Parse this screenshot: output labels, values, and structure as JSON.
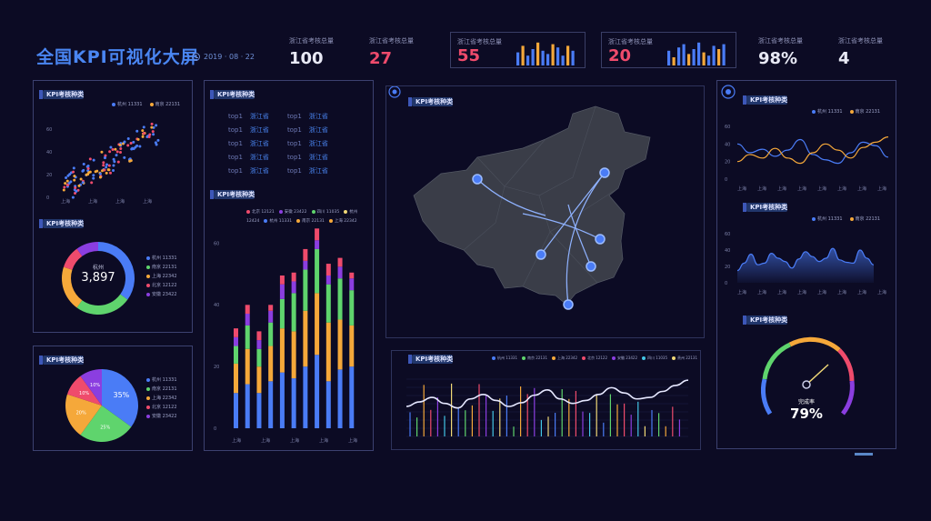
{
  "header": {
    "title": "全国KPI可视化大屏",
    "date": "2019 · 08 · 22"
  },
  "kpis": [
    {
      "label": "浙江省考核总量",
      "value": "100",
      "color": "#e8e9f5"
    },
    {
      "label": "浙江省考核总量",
      "value": "27",
      "color": "#ef4b6c"
    },
    {
      "label": "浙江省考核总量",
      "value": "55",
      "color": "#ef4b6c"
    },
    {
      "label": "浙江省考核总量",
      "value": "20",
      "color": "#ef4b6c"
    },
    {
      "label": "浙江省考核总量",
      "value": "98%",
      "color": "#e8e9f5"
    },
    {
      "label": "浙江省考核总量",
      "value": "4",
      "color": "#e8e9f5"
    }
  ],
  "panel_title": "KPI考核种类",
  "colors": {
    "blue": "#4a7cf6",
    "orange": "#f5a83a",
    "green": "#5fd46d",
    "red": "#ef4b6c",
    "purple": "#8b3ee0",
    "yellow": "#f0d877",
    "cyan": "#43c6e6"
  },
  "rank_list": {
    "rows": [
      {
        "a": "top1",
        "b": "浙江省",
        "c": "top1",
        "d": "浙江省"
      },
      {
        "a": "top1",
        "b": "浙江省",
        "c": "top1",
        "d": "浙江省"
      },
      {
        "a": "top1",
        "b": "浙江省",
        "c": "top1",
        "d": "浙江省"
      },
      {
        "a": "top1",
        "b": "浙江省",
        "c": "top1",
        "d": "浙江省"
      },
      {
        "a": "top1",
        "b": "浙江省",
        "c": "top1",
        "d": "浙江省"
      }
    ]
  },
  "gauge": {
    "label": "完成率",
    "value": "79%"
  },
  "chart_data": [
    {
      "id": "scatter",
      "type": "scatter",
      "legend": [
        "杭州 11331",
        "南京 22131"
      ],
      "xlabels": [
        "上海",
        "上海",
        "上海",
        "上海"
      ],
      "yticks": [
        "60",
        "40",
        "20",
        "0"
      ],
      "ylim": [
        0,
        70
      ]
    },
    {
      "id": "donut",
      "type": "pie",
      "center_label": "杭州",
      "center_value": "3,897",
      "legend": [
        "杭州 11331",
        "南京 22131",
        "上海 22342",
        "北京 12122",
        "安徽 23422"
      ],
      "values": [
        35,
        25,
        20,
        10,
        10
      ]
    },
    {
      "id": "pie",
      "type": "pie",
      "legend": [
        "杭州 11331",
        "南京 22131",
        "上海 22342",
        "北京 12122",
        "安徽 23422"
      ],
      "values": [
        35,
        25,
        20,
        10,
        10
      ],
      "labels": [
        "35%",
        "25%",
        "20%",
        "10%",
        "10%"
      ]
    },
    {
      "id": "stacked",
      "type": "bar",
      "legend": [
        "北京 12121",
        "安徽 23422",
        "四川 11035",
        "杭州 12424",
        "杭州 11331",
        "南京 22131",
        "上海 22342"
      ],
      "xlabels": [
        "上海",
        "上海",
        "上海",
        "上海",
        "上海"
      ],
      "yticks": [
        "60",
        "40",
        "20",
        "0"
      ],
      "ylim": [
        0,
        65
      ],
      "series": [
        {
          "name": "blue",
          "values": [
            12,
            15,
            12,
            16,
            19,
            17,
            21,
            25,
            16,
            20,
            21
          ]
        },
        {
          "name": "orange",
          "values": [
            10,
            12,
            9,
            12,
            15,
            16,
            19,
            21,
            20,
            17,
            14
          ]
        },
        {
          "name": "green",
          "values": [
            6,
            8,
            6,
            8,
            10,
            13,
            14,
            15,
            13,
            14,
            12
          ]
        },
        {
          "name": "purple",
          "values": [
            3,
            4,
            3,
            4,
            5,
            4,
            3,
            3,
            3,
            4,
            4
          ]
        },
        {
          "name": "red",
          "values": [
            3,
            3,
            3,
            2,
            3,
            3,
            4,
            4,
            4,
            3,
            2
          ]
        }
      ]
    },
    {
      "id": "line1",
      "type": "line",
      "legend": [
        "杭州 11331",
        "南京 22131"
      ],
      "xlabels": [
        "上海",
        "上海",
        "上海",
        "上海",
        "上海",
        "上海",
        "上海",
        "上海"
      ],
      "yticks": [
        "60",
        "40",
        "20",
        "0"
      ],
      "series": [
        {
          "name": "blue",
          "values": [
            40,
            30,
            34,
            26,
            33,
            45,
            28,
            22,
            18,
            30,
            42,
            38,
            25
          ]
        },
        {
          "name": "orange",
          "values": [
            20,
            28,
            24,
            35,
            24,
            18,
            30,
            40,
            33,
            24,
            36,
            42,
            48
          ]
        }
      ]
    },
    {
      "id": "area",
      "type": "area",
      "legend": [
        "杭州 11331",
        "南京 22131"
      ],
      "xlabels": [
        "上海",
        "上海",
        "上海",
        "上海",
        "上海",
        "上海",
        "上海",
        "上海"
      ],
      "yticks": [
        "60",
        "40",
        "20",
        "0"
      ],
      "values": [
        15,
        24,
        35,
        22,
        24,
        36,
        30,
        26,
        18,
        29,
        38,
        32,
        26,
        30,
        42,
        28,
        25,
        24,
        40,
        30,
        22
      ]
    },
    {
      "id": "bottom",
      "type": "line",
      "legend": [
        "杭州 11331",
        "南京 22131",
        "上海 22342",
        "北京 12122",
        "安徽 23422",
        "四川 11035",
        "贵州 22131"
      ],
      "values": [
        40,
        46,
        52,
        44,
        38,
        50,
        56,
        48,
        40,
        45,
        55,
        62,
        50,
        44,
        48,
        56,
        65,
        58,
        50,
        52,
        60,
        68,
        75
      ]
    },
    {
      "id": "kpi_mini1",
      "type": "bar",
      "values": [
        8,
        12,
        6,
        10,
        14,
        9,
        7,
        13,
        11,
        6,
        12,
        9
      ]
    },
    {
      "id": "kpi_mini2",
      "type": "bar",
      "values": [
        9,
        5,
        11,
        13,
        7,
        10,
        14,
        8,
        6,
        12,
        10,
        13
      ]
    }
  ]
}
